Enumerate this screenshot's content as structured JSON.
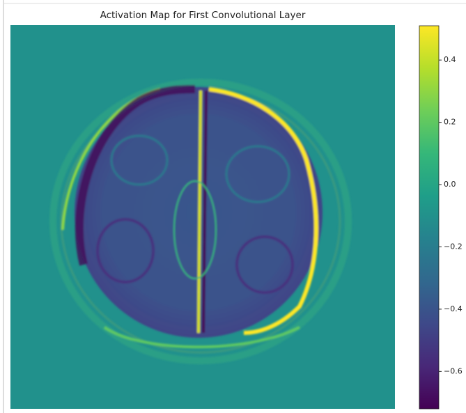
{
  "chart_data": {
    "type": "image",
    "title": "Activation Map for First Convolutional Layer",
    "colorbar_lim": [
      -0.72,
      0.51
    ],
    "colorbar_ticks": [
      0.4,
      0.2,
      {
        "value": 0.0,
        "label": "0.0"
      },
      {
        "value": -0.2,
        "label": "−0.2"
      },
      {
        "value": -0.4,
        "label": "−0.4"
      },
      {
        "value": -0.6,
        "label": "−0.6"
      }
    ],
    "colormap_colors": [
      "#440154",
      "#482878",
      "#3e4989",
      "#31688e",
      "#26828e",
      "#1f9e89",
      "#35b779",
      "#6ece58",
      "#b5de2b",
      "#fde725"
    ]
  }
}
